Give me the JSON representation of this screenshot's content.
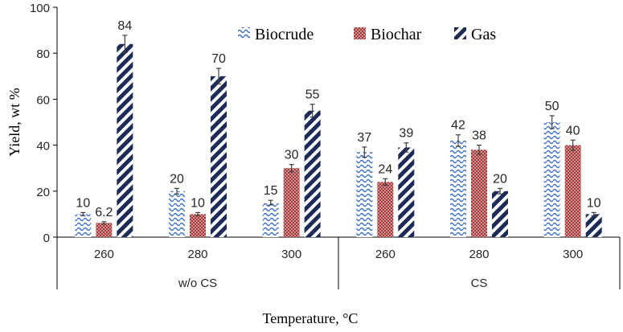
{
  "chart_data": {
    "type": "bar",
    "groups": [
      {
        "label": "w/o CS",
        "categories": [
          "260",
          "280",
          "300"
        ]
      },
      {
        "label": "CS",
        "categories": [
          "260",
          "280",
          "300"
        ]
      }
    ],
    "series": [
      {
        "name": "Biocrude",
        "values": [
          10,
          20,
          15,
          37,
          42,
          50
        ],
        "labels": [
          "10",
          "20",
          "15",
          "37",
          "42",
          "50"
        ],
        "errors": [
          0.7,
          1.2,
          1.0,
          2.2,
          2.5,
          2.8
        ],
        "color": "#3d6fc4",
        "pattern": "wave"
      },
      {
        "name": "Biochar",
        "values": [
          6.2,
          10,
          30,
          24,
          38,
          40
        ],
        "labels": [
          "6.2",
          "10",
          "30",
          "24",
          "38",
          "40"
        ],
        "errors": [
          0.5,
          0.7,
          1.6,
          1.4,
          2.0,
          2.2
        ],
        "color": "#b54545",
        "pattern": "dots"
      },
      {
        "name": "Gas",
        "values": [
          84,
          70,
          55,
          39,
          20,
          10
        ],
        "labels": [
          "84",
          "70",
          "55",
          "39",
          "20",
          "10"
        ],
        "errors": [
          3.8,
          3.4,
          2.8,
          2.0,
          1.2,
          0.7
        ],
        "color": "#1c2b57",
        "pattern": "stripes"
      }
    ],
    "ylabel": "Yield, wt  %",
    "xlabel": "Temperature, °C",
    "ylim": [
      0,
      100
    ],
    "yticks": [
      0,
      20,
      40,
      60,
      80,
      100
    ],
    "legend": "top-right",
    "grid": false
  }
}
